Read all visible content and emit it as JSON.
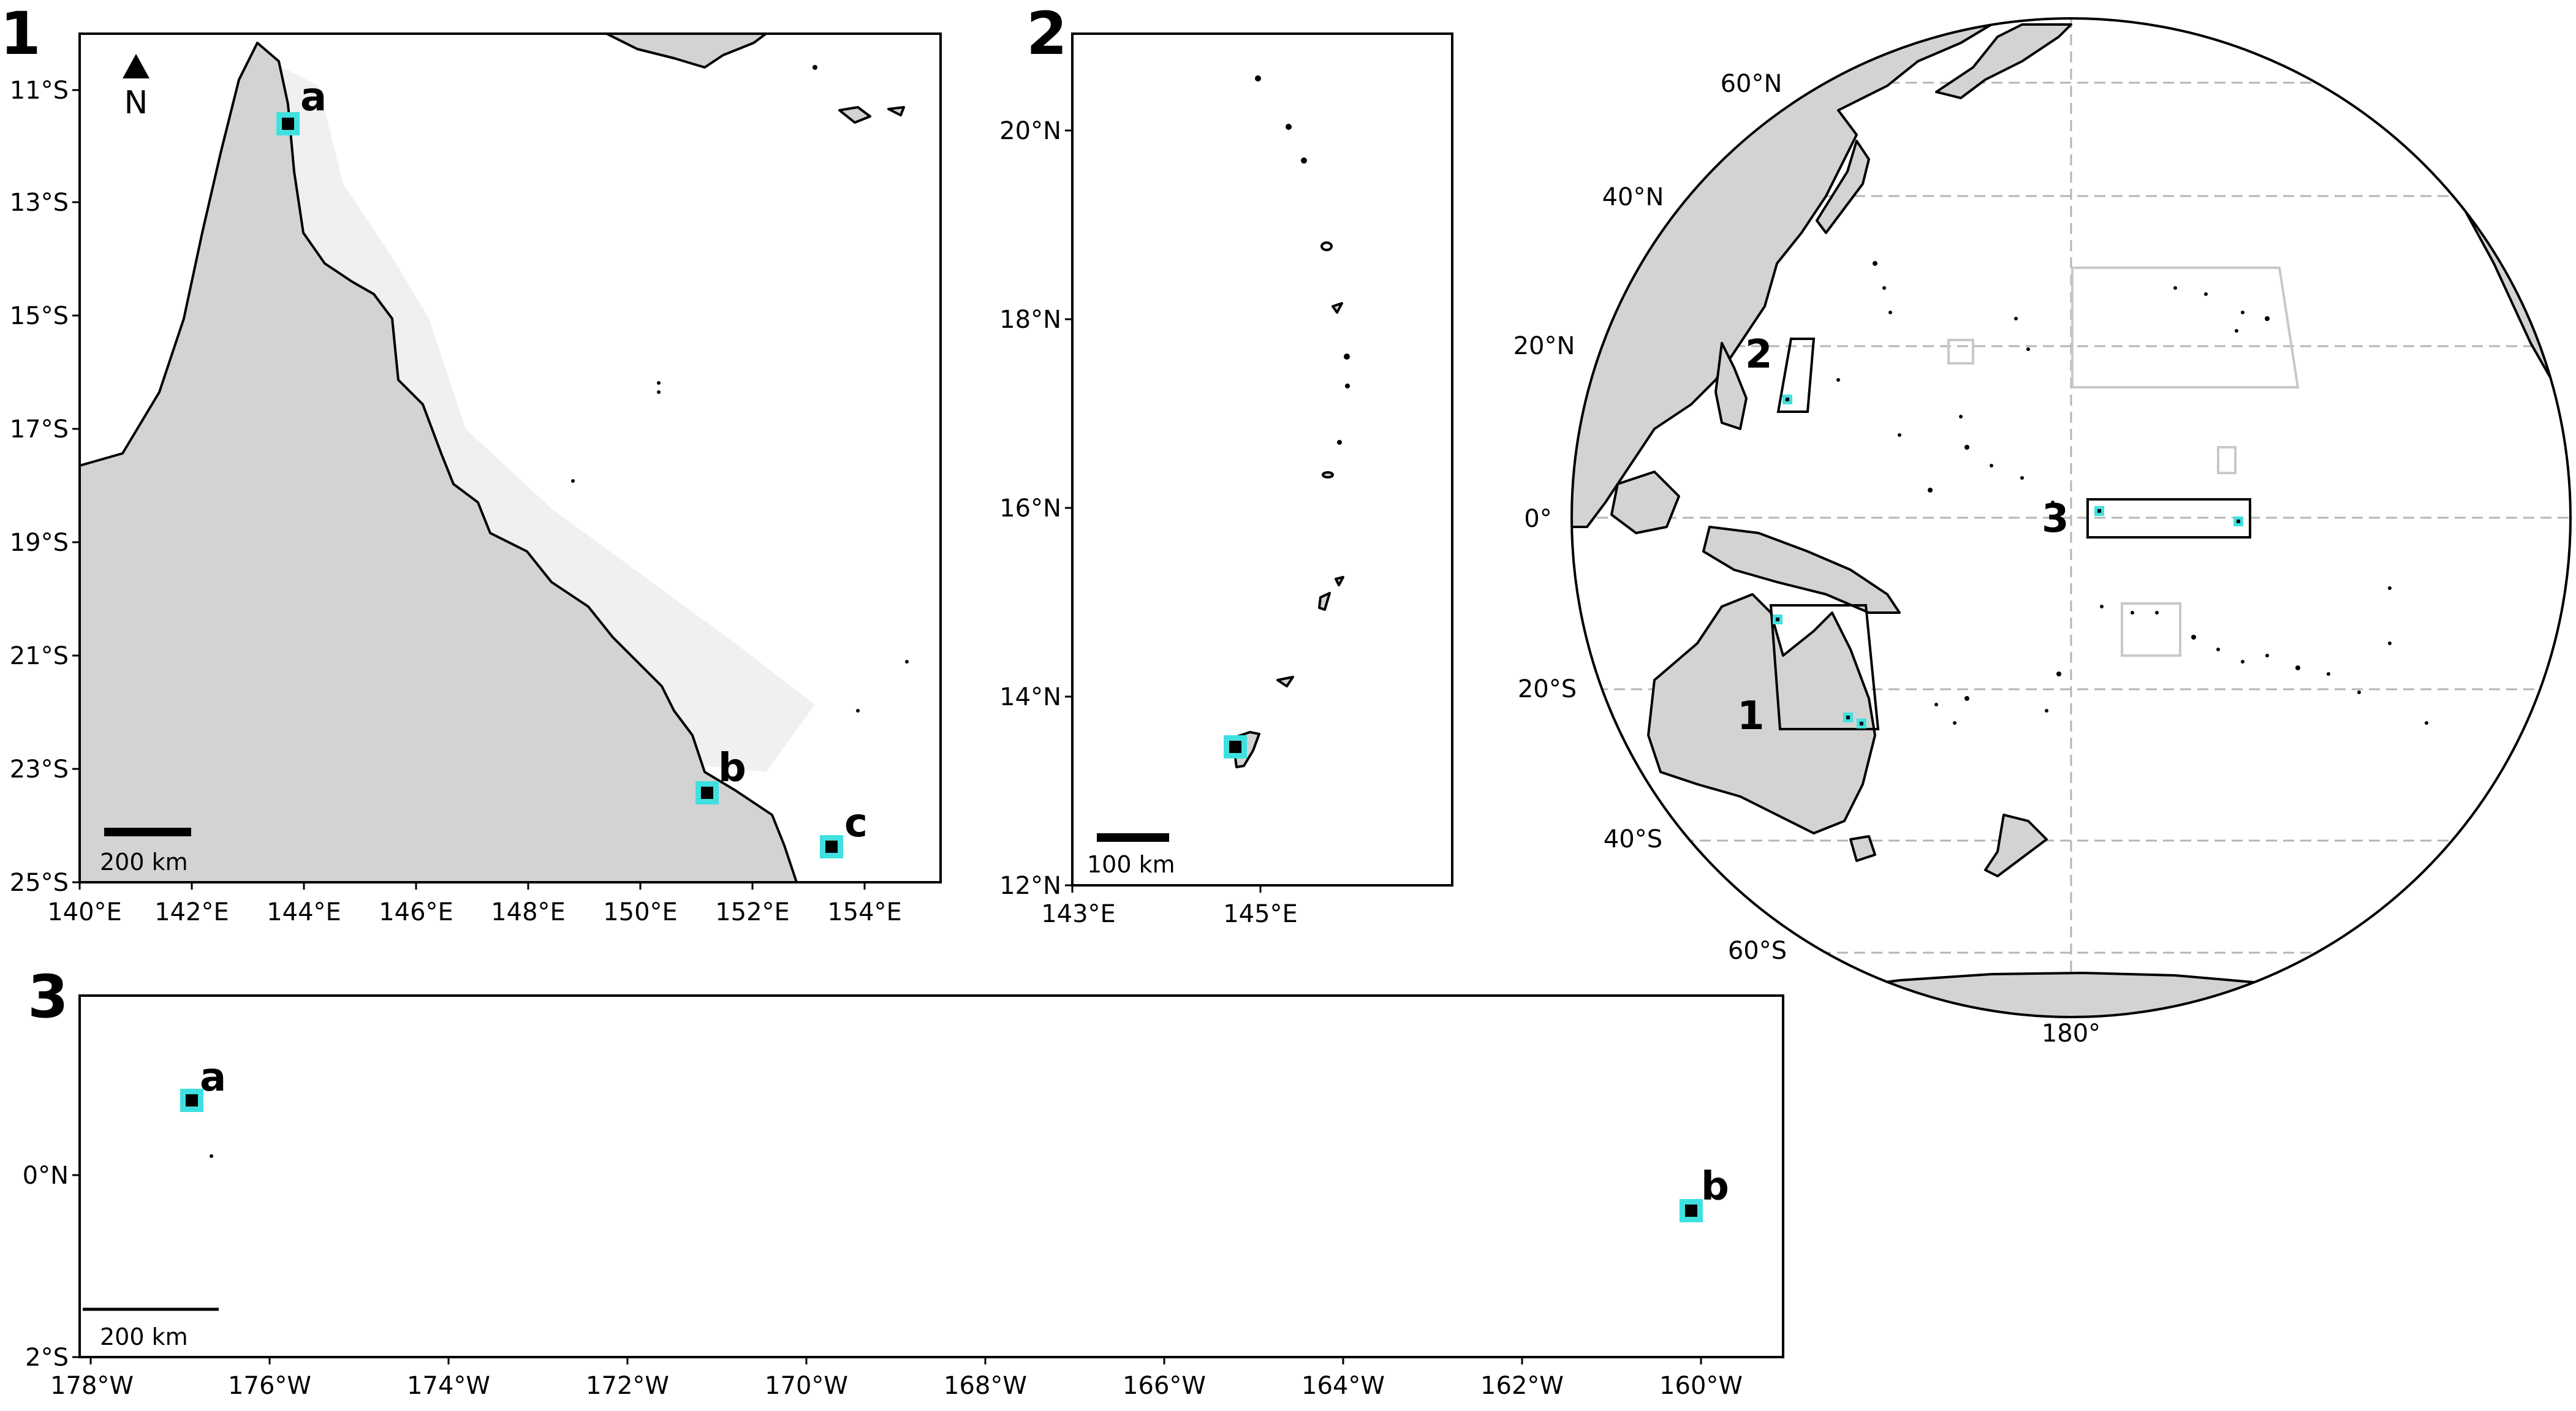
{
  "panels": {
    "p1": {
      "label": "1",
      "north": "N",
      "scale": "200 km",
      "sites": [
        "a",
        "b",
        "c"
      ],
      "lat_ticks": [
        "11°S",
        "13°S",
        "15°S",
        "17°S",
        "19°S",
        "21°S",
        "23°S",
        "25°S"
      ],
      "lon_ticks": [
        "140°E",
        "142°E",
        "144°E",
        "146°E",
        "148°E",
        "150°E",
        "152°E",
        "154°E"
      ]
    },
    "p2": {
      "label": "2",
      "scale": "100 km",
      "lat_ticks": [
        "20°N",
        "18°N",
        "16°N",
        "14°N",
        "12°N"
      ],
      "lon_ticks": [
        "143°E",
        "145°E"
      ]
    },
    "p3": {
      "label": "3",
      "scale": "200 km",
      "sites": [
        "a",
        "b"
      ],
      "lat_ticks": [
        "0°N",
        "2°S"
      ],
      "lon_ticks": [
        "178°W",
        "176°W",
        "174°W",
        "172°W",
        "170°W",
        "168°W",
        "166°W",
        "164°W",
        "162°W",
        "160°W"
      ]
    },
    "globe": {
      "lat_labels": [
        "60°N",
        "40°N",
        "20°N",
        "0°",
        "20°S",
        "40°S",
        "60°S"
      ],
      "lon_label": "180°",
      "box_labels": [
        "2",
        "3",
        "1"
      ]
    }
  },
  "colors": {
    "land": "#d3d3d3",
    "reef": "#f0f0f0",
    "site_marker": "#40e0e0",
    "site_core": "#000000",
    "study_box": "#000000",
    "other_box": "#c8c8c8",
    "gridline": "#b5b5b5"
  },
  "icons": [
    "north-arrow-icon",
    "site-marker-icon"
  ]
}
